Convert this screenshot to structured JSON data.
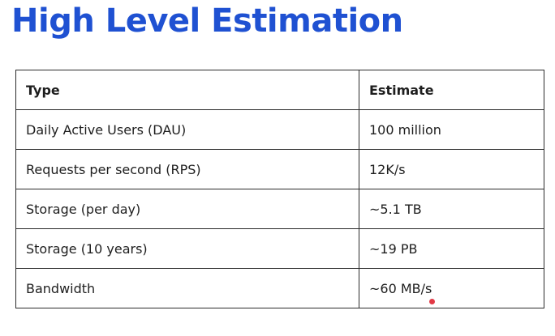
{
  "title": "High Level Estimation",
  "table": {
    "headers": [
      "Type",
      "Estimate"
    ],
    "rows": [
      [
        "Daily Active Users (DAU)",
        "100 million"
      ],
      [
        "Requests per second (RPS)",
        "12K/s"
      ],
      [
        "Storage (per day)",
        "~5.1 TB"
      ],
      [
        "Storage (10 years)",
        "~19 PB"
      ],
      [
        "Bandwidth",
        "~60 MB/s"
      ]
    ]
  },
  "colors": {
    "title": "#1f51d2",
    "text": "#1e1e1e",
    "border": "#2b2b2b",
    "pointer_dot": "#e23a46"
  }
}
